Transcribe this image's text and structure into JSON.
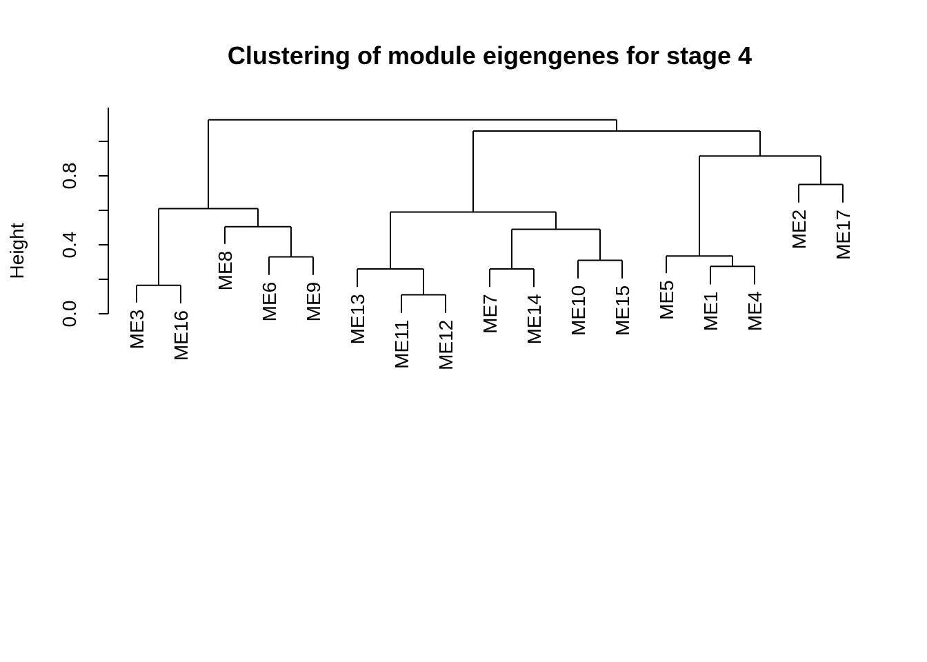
{
  "chart_data": {
    "type": "dendrogram",
    "title": "Clustering of module eigengenes for stage  4",
    "ylabel": "Height",
    "ylim": [
      0,
      1.2
    ],
    "yticks": [
      0.0,
      0.2,
      0.4,
      0.6,
      0.8,
      1.0
    ],
    "ytick_labels": [
      "0.0",
      "",
      "0.4",
      "",
      "0.8",
      ""
    ],
    "leaves": [
      "ME3",
      "ME16",
      "ME8",
      "ME6",
      "ME9",
      "ME13",
      "ME11",
      "ME12",
      "ME7",
      "ME14",
      "ME10",
      "ME15",
      "ME5",
      "ME1",
      "ME4",
      "ME2",
      "ME17"
    ],
    "merges": [
      {
        "left": 0,
        "right": 1,
        "height": 0.165
      },
      {
        "left": 3,
        "right": 4,
        "height": 0.33
      },
      {
        "left": 2,
        "right": "m1",
        "height": 0.505
      },
      {
        "left": "m0",
        "right": "m2",
        "height": 0.61
      },
      {
        "left": 6,
        "right": 7,
        "height": 0.11
      },
      {
        "left": 5,
        "right": "m4",
        "height": 0.26
      },
      {
        "left": 8,
        "right": 9,
        "height": 0.26
      },
      {
        "left": 10,
        "right": 11,
        "height": 0.31
      },
      {
        "left": "m6",
        "right": "m7",
        "height": 0.49
      },
      {
        "left": "m5",
        "right": "m8",
        "height": 0.59
      },
      {
        "left": 13,
        "right": 14,
        "height": 0.275
      },
      {
        "left": 12,
        "right": "m10",
        "height": 0.335
      },
      {
        "left": 15,
        "right": 16,
        "height": 0.75
      },
      {
        "left": "m11",
        "right": "m12",
        "height": 0.915
      },
      {
        "left": "m9",
        "right": "m13",
        "height": 1.06
      },
      {
        "left": "m3",
        "right": "m14",
        "height": 1.125
      }
    ],
    "leaf_line_bottoms": [
      0.065,
      0.06,
      0.405,
      0.225,
      0.225,
      0.155,
      0.005,
      0.005,
      0.155,
      0.155,
      0.205,
      0.205,
      0.235,
      0.17,
      0.17,
      0.645,
      0.645
    ]
  }
}
